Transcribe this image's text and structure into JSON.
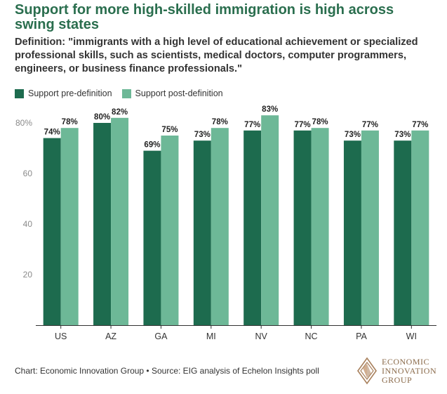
{
  "title": "Support for more high-skilled immigration is high across swing states",
  "subtitle": "Definition: \"immigrants with a high level of educational achievement or specialized professional skills, such as scientists, medical doctors, computer programmers, engineers, or business finance professionals.\"",
  "legend": {
    "pre": "Support pre-definition",
    "post": "Support post-definition"
  },
  "colors": {
    "pre": "#1d6b4e",
    "post": "#6db897",
    "title": "#2a6e4e"
  },
  "footer": "Chart: Economic Innovation Group • Source: EIG analysis of Echelon Insights poll",
  "logo": {
    "line1": "ECONOMIC",
    "line2": "INNOVATION",
    "line3": "GROUP"
  },
  "chart_data": {
    "type": "bar",
    "categories": [
      "US",
      "AZ",
      "GA",
      "MI",
      "NV",
      "NC",
      "PA",
      "WI"
    ],
    "series": [
      {
        "name": "Support pre-definition",
        "values": [
          74,
          80,
          69,
          73,
          77,
          77,
          73,
          73
        ]
      },
      {
        "name": "Support post-definition",
        "values": [
          78,
          82,
          75,
          78,
          83,
          78,
          77,
          77
        ]
      }
    ],
    "data_labels": {
      "pre": [
        "74%",
        "80%",
        "69%",
        "73%",
        "77%",
        "77%",
        "73%",
        "73%"
      ],
      "post": [
        "78%",
        "82%",
        "75%",
        "78%",
        "83%",
        "78%",
        "77%",
        "77%"
      ]
    },
    "y_ticks": [
      {
        "value": 20,
        "label": "20"
      },
      {
        "value": 40,
        "label": "40"
      },
      {
        "value": 60,
        "label": "60"
      },
      {
        "value": 80,
        "label": "80%"
      }
    ],
    "ylim": [
      0,
      85
    ],
    "grid": false,
    "legend_position": "top-left"
  }
}
